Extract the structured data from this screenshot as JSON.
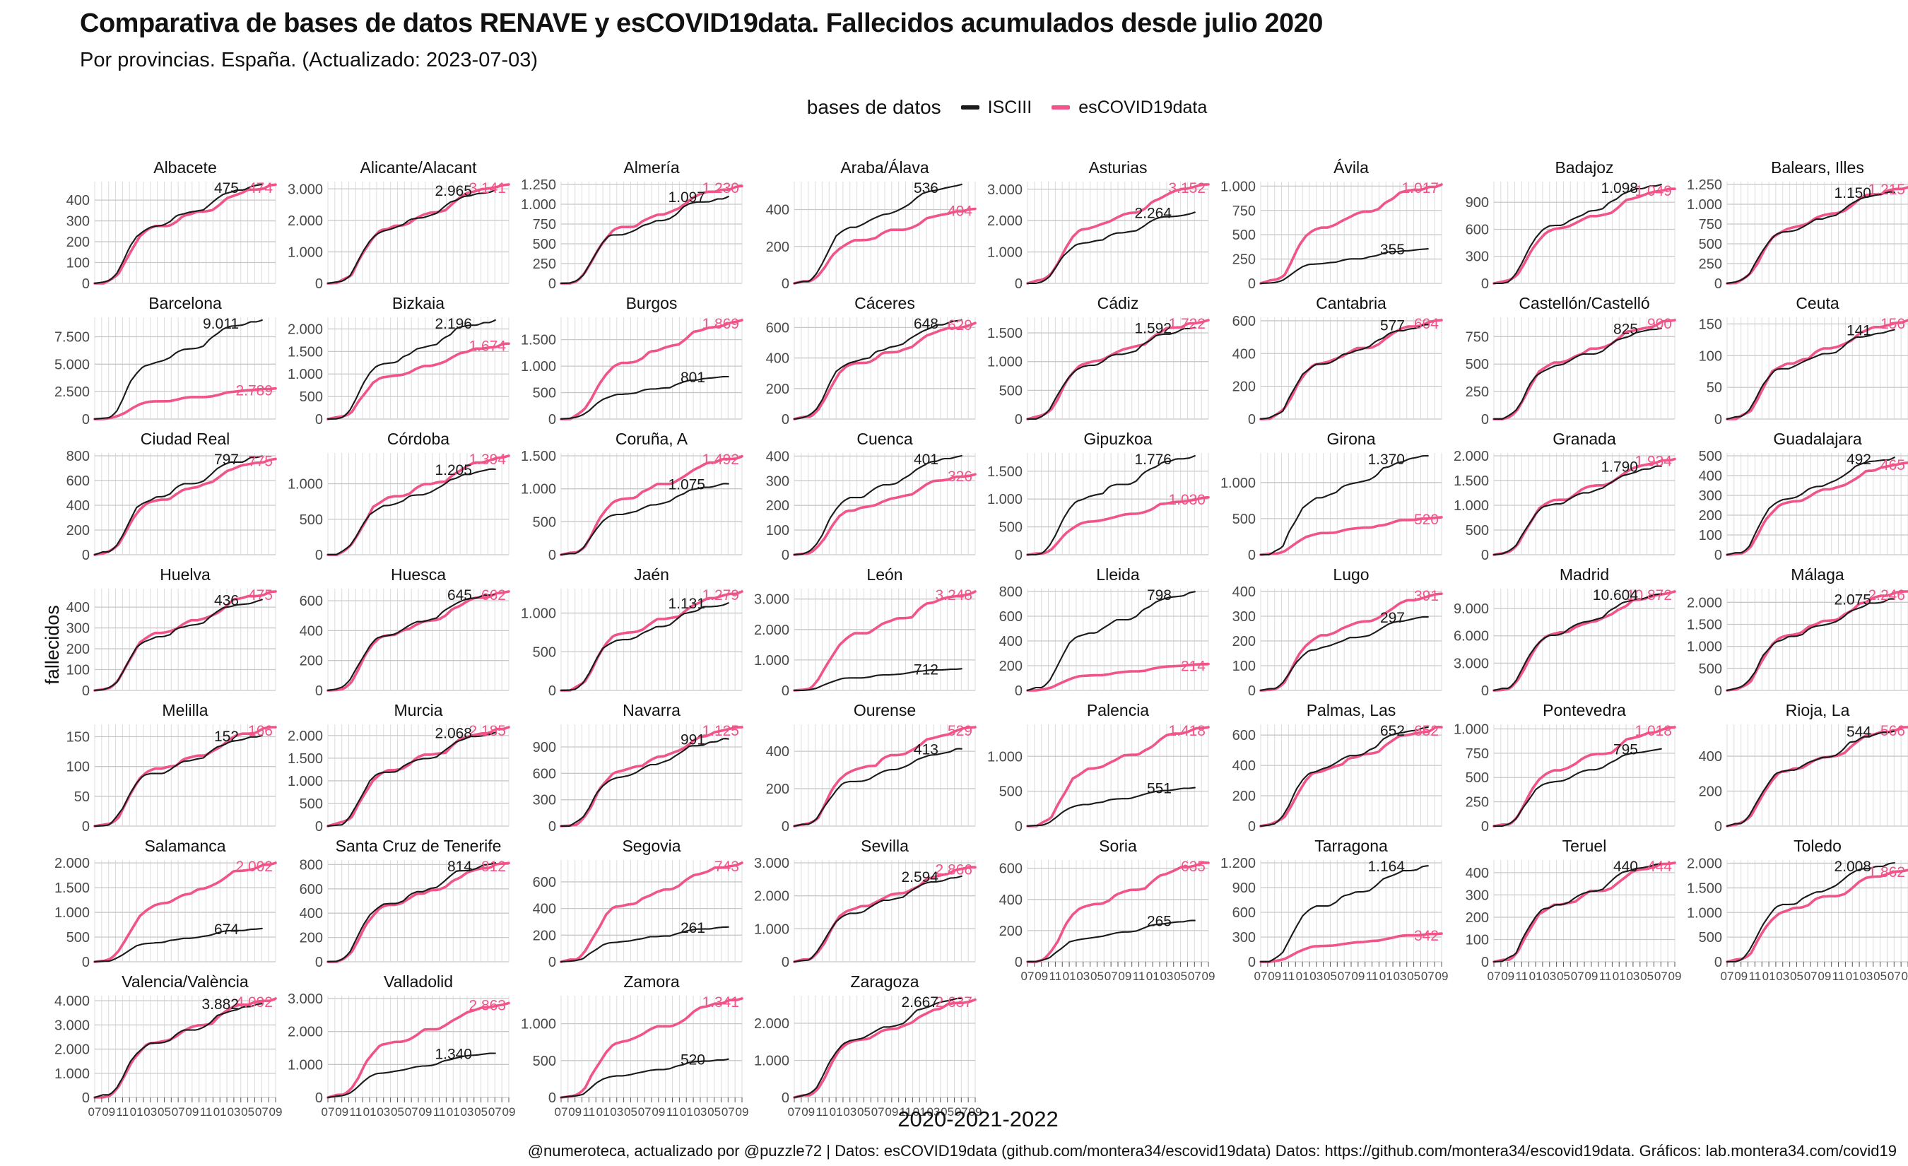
{
  "title": "Comparativa de bases de datos RENAVE y esCOVID19data. Fallecidos acumulados desde julio 2020",
  "subtitle": "Por provincias. España. (Actualizado: 2023-07-03)",
  "legend": {
    "title": "bases de datos",
    "entries": [
      {
        "label": "ISCIII",
        "color": "#1a1a1a"
      },
      {
        "label": "esCOVID19data",
        "color": "#f0548a"
      }
    ]
  },
  "y_axis_label": "fallecidos",
  "x_axis_label": "2020-2021-2022",
  "footer": "@numeroteca, actualizado por @puzzle72 | Datos: esCOVID19data (github.com/montera34/escovid19data) Datos: https://github.com/montera34/escovid19data. Gráficos: lab.montera34.com/covid19",
  "colors": {
    "isciii": "#1a1a1a",
    "escovid": "#f0548a",
    "grid_vertical": "#dcdcdc",
    "grid_horizontal": "#c7c7c7",
    "tick_text": "#4a4a4a"
  },
  "chart_data": {
    "type": "line",
    "x_range": [
      "2020-07",
      "2022-09"
    ],
    "x_tick_labels": [
      "07",
      "09",
      "11",
      "01",
      "03",
      "05",
      "07",
      "09",
      "11",
      "01",
      "03",
      "05",
      "07",
      "09"
    ],
    "series_names": [
      "ISCIII",
      "esCOVID19data"
    ],
    "note": "cumulative deaths since July 2020; final values annotated per panel",
    "provinces": [
      {
        "name": "Albacete",
        "isciii": "475",
        "escovid": "474",
        "yticks": [
          "0",
          "100",
          "200",
          "300",
          "400"
        ]
      },
      {
        "name": "Alicante/Alacant",
        "isciii": "2.965",
        "escovid": "3.141",
        "yticks": [
          "0",
          "1.000",
          "2.000",
          "3.000"
        ]
      },
      {
        "name": "Almería",
        "isciii": "1.097",
        "escovid": "1.230",
        "yticks": [
          "0",
          "250",
          "500",
          "750",
          "1.000",
          "1.250"
        ]
      },
      {
        "name": "Araba/Álava",
        "isciii": "536",
        "escovid": "404",
        "yticks": [
          "0",
          "200",
          "400"
        ]
      },
      {
        "name": "Asturias",
        "isciii": "2.264",
        "escovid": "3.152",
        "yticks": [
          "0",
          "1.000",
          "2.000",
          "3.000"
        ]
      },
      {
        "name": "Ávila",
        "isciii": "355",
        "escovid": "1.017",
        "yticks": [
          "0",
          "250",
          "500",
          "750",
          "1.000"
        ]
      },
      {
        "name": "Badajoz",
        "isciii": "1.098",
        "escovid": "1.049",
        "yticks": [
          "0",
          "300",
          "600",
          "900"
        ]
      },
      {
        "name": "Balears, Illes",
        "isciii": "1.150",
        "escovid": "1.215",
        "yticks": [
          "0",
          "250",
          "500",
          "750",
          "1.000",
          "1.250"
        ]
      },
      {
        "name": "Barcelona",
        "isciii": "9.011",
        "escovid": "2.789",
        "yticks": [
          "0",
          "2.500",
          "5.000",
          "7.500"
        ]
      },
      {
        "name": "Bizkaia",
        "isciii": "2.196",
        "escovid": "1.674",
        "yticks": [
          "0",
          "500",
          "1.000",
          "1.500",
          "2.000"
        ]
      },
      {
        "name": "Burgos",
        "isciii": "801",
        "escovid": "1.869",
        "yticks": [
          "0",
          "500",
          "1.000",
          "1.500"
        ]
      },
      {
        "name": "Cáceres",
        "isciii": "648",
        "escovid": "629",
        "yticks": [
          "0",
          "200",
          "400",
          "600"
        ]
      },
      {
        "name": "Cádiz",
        "isciii": "1.592",
        "escovid": "1.722",
        "yticks": [
          "0",
          "500",
          "1.000",
          "1.500"
        ]
      },
      {
        "name": "Cantabria",
        "isciii": "577",
        "escovid": "604",
        "yticks": [
          "0",
          "200",
          "400",
          "600"
        ]
      },
      {
        "name": "Castellón/Castelló",
        "isciii": "825",
        "escovid": "900",
        "yticks": [
          "0",
          "250",
          "500",
          "750"
        ]
      },
      {
        "name": "Ceuta",
        "isciii": "141",
        "escovid": "156",
        "yticks": [
          "0",
          "50",
          "100",
          "150"
        ]
      },
      {
        "name": "Ciudad Real",
        "isciii": "797",
        "escovid": "775",
        "yticks": [
          "0",
          "200",
          "400",
          "600",
          "800"
        ]
      },
      {
        "name": "Córdoba",
        "isciii": "1.205",
        "escovid": "1.394",
        "yticks": [
          "0",
          "500",
          "1.000"
        ]
      },
      {
        "name": "Coruña, A",
        "isciii": "1.075",
        "escovid": "1.492",
        "yticks": [
          "0",
          "500",
          "1.000",
          "1.500"
        ]
      },
      {
        "name": "Cuenca",
        "isciii": "401",
        "escovid": "326",
        "yticks": [
          "0",
          "100",
          "200",
          "300",
          "400"
        ]
      },
      {
        "name": "Gipuzkoa",
        "isciii": "1.776",
        "escovid": "1.030",
        "yticks": [
          "0",
          "500",
          "1.000",
          "1.500"
        ]
      },
      {
        "name": "Girona",
        "isciii": "1.370",
        "escovid": "520",
        "yticks": [
          "0",
          "500",
          "1.000"
        ]
      },
      {
        "name": "Granada",
        "isciii": "1.790",
        "escovid": "1.934",
        "yticks": [
          "0",
          "500",
          "1.000",
          "1.500",
          "2.000"
        ]
      },
      {
        "name": "Guadalajara",
        "isciii": "492",
        "escovid": "465",
        "yticks": [
          "0",
          "100",
          "200",
          "300",
          "400",
          "500"
        ]
      },
      {
        "name": "Huelva",
        "isciii": "436",
        "escovid": "475",
        "yticks": [
          "0",
          "100",
          "200",
          "300",
          "400"
        ]
      },
      {
        "name": "Huesca",
        "isciii": "645",
        "escovid": "662",
        "yticks": [
          "0",
          "200",
          "400",
          "600"
        ]
      },
      {
        "name": "Jaén",
        "isciii": "1.131",
        "escovid": "1.279",
        "yticks": [
          "0",
          "500",
          "1.000"
        ]
      },
      {
        "name": "León",
        "isciii": "712",
        "escovid": "3.248",
        "yticks": [
          "0",
          "1.000",
          "2.000",
          "3.000"
        ]
      },
      {
        "name": "Lleida",
        "isciii": "798",
        "escovid": "214",
        "yticks": [
          "0",
          "200",
          "400",
          "600",
          "800"
        ]
      },
      {
        "name": "Lugo",
        "isciii": "297",
        "escovid": "391",
        "yticks": [
          "0",
          "100",
          "200",
          "300",
          "400"
        ]
      },
      {
        "name": "Madrid",
        "isciii": "10.604",
        "escovid": "10.872",
        "yticks": [
          "0",
          "3.000",
          "6.000",
          "9.000"
        ]
      },
      {
        "name": "Málaga",
        "isciii": "2.075",
        "escovid": "2.246",
        "yticks": [
          "0",
          "500",
          "1.000",
          "1.500",
          "2.000"
        ]
      },
      {
        "name": "Melilla",
        "isciii": "152",
        "escovid": "166",
        "yticks": [
          "0",
          "50",
          "100",
          "150"
        ]
      },
      {
        "name": "Murcia",
        "isciii": "2.068",
        "escovid": "2.185",
        "yticks": [
          "0",
          "500",
          "1.000",
          "1.500",
          "2.000"
        ]
      },
      {
        "name": "Navarra",
        "isciii": "991",
        "escovid": "1.125",
        "yticks": [
          "0",
          "300",
          "600",
          "900"
        ]
      },
      {
        "name": "Ourense",
        "isciii": "413",
        "escovid": "529",
        "yticks": [
          "0",
          "200",
          "400"
        ]
      },
      {
        "name": "Palencia",
        "isciii": "551",
        "escovid": "1.418",
        "yticks": [
          "0",
          "500",
          "1.000"
        ]
      },
      {
        "name": "Palmas, Las",
        "isciii": "652",
        "escovid": "652",
        "yticks": [
          "0",
          "200",
          "400",
          "600"
        ]
      },
      {
        "name": "Pontevedra",
        "isciii": "795",
        "escovid": "1.018",
        "yticks": [
          "0",
          "250",
          "500",
          "750",
          "1.000"
        ]
      },
      {
        "name": "Rioja, La",
        "isciii": "544",
        "escovid": "566",
        "yticks": [
          "0",
          "200",
          "400"
        ]
      },
      {
        "name": "Salamanca",
        "isciii": "674",
        "escovid": "2.002",
        "yticks": [
          "0",
          "500",
          "1.000",
          "1.500",
          "2.000"
        ]
      },
      {
        "name": "Santa Cruz de Tenerife",
        "isciii": "814",
        "escovid": "812",
        "yticks": [
          "0",
          "200",
          "400",
          "600",
          "800"
        ]
      },
      {
        "name": "Segovia",
        "isciii": "261",
        "escovid": "743",
        "yticks": [
          "0",
          "200",
          "400",
          "600"
        ]
      },
      {
        "name": "Sevilla",
        "isciii": "2.594",
        "escovid": "2.866",
        "yticks": [
          "0",
          "1.000",
          "2.000",
          "3.000"
        ]
      },
      {
        "name": "Soria",
        "isciii": "265",
        "escovid": "635",
        "yticks": [
          "0",
          "200",
          "400",
          "600"
        ]
      },
      {
        "name": "Tarragona",
        "isciii": "1.164",
        "escovid": "342",
        "yticks": [
          "0",
          "300",
          "600",
          "900",
          "1.200"
        ]
      },
      {
        "name": "Teruel",
        "isciii": "440",
        "escovid": "444",
        "yticks": [
          "0",
          "100",
          "200",
          "300",
          "400"
        ]
      },
      {
        "name": "Toledo",
        "isciii": "2.008",
        "escovid": "1.862",
        "yticks": [
          "0",
          "500",
          "1.000",
          "1.500",
          "2.000"
        ]
      },
      {
        "name": "Valencia/València",
        "isciii": "3.882",
        "escovid": "4.092",
        "yticks": [
          "0",
          "1.000",
          "2.000",
          "3.000",
          "4.000"
        ]
      },
      {
        "name": "Valladolid",
        "isciii": "1.340",
        "escovid": "2.863",
        "yticks": [
          "0",
          "1.000",
          "2.000",
          "3.000"
        ]
      },
      {
        "name": "Zamora",
        "isciii": "520",
        "escovid": "1.341",
        "yticks": [
          "0",
          "500",
          "1.000"
        ]
      },
      {
        "name": "Zaragoza",
        "isciii": "2.667",
        "escovid": "2.637",
        "yticks": [
          "0",
          "1.000",
          "2.000"
        ]
      }
    ]
  }
}
